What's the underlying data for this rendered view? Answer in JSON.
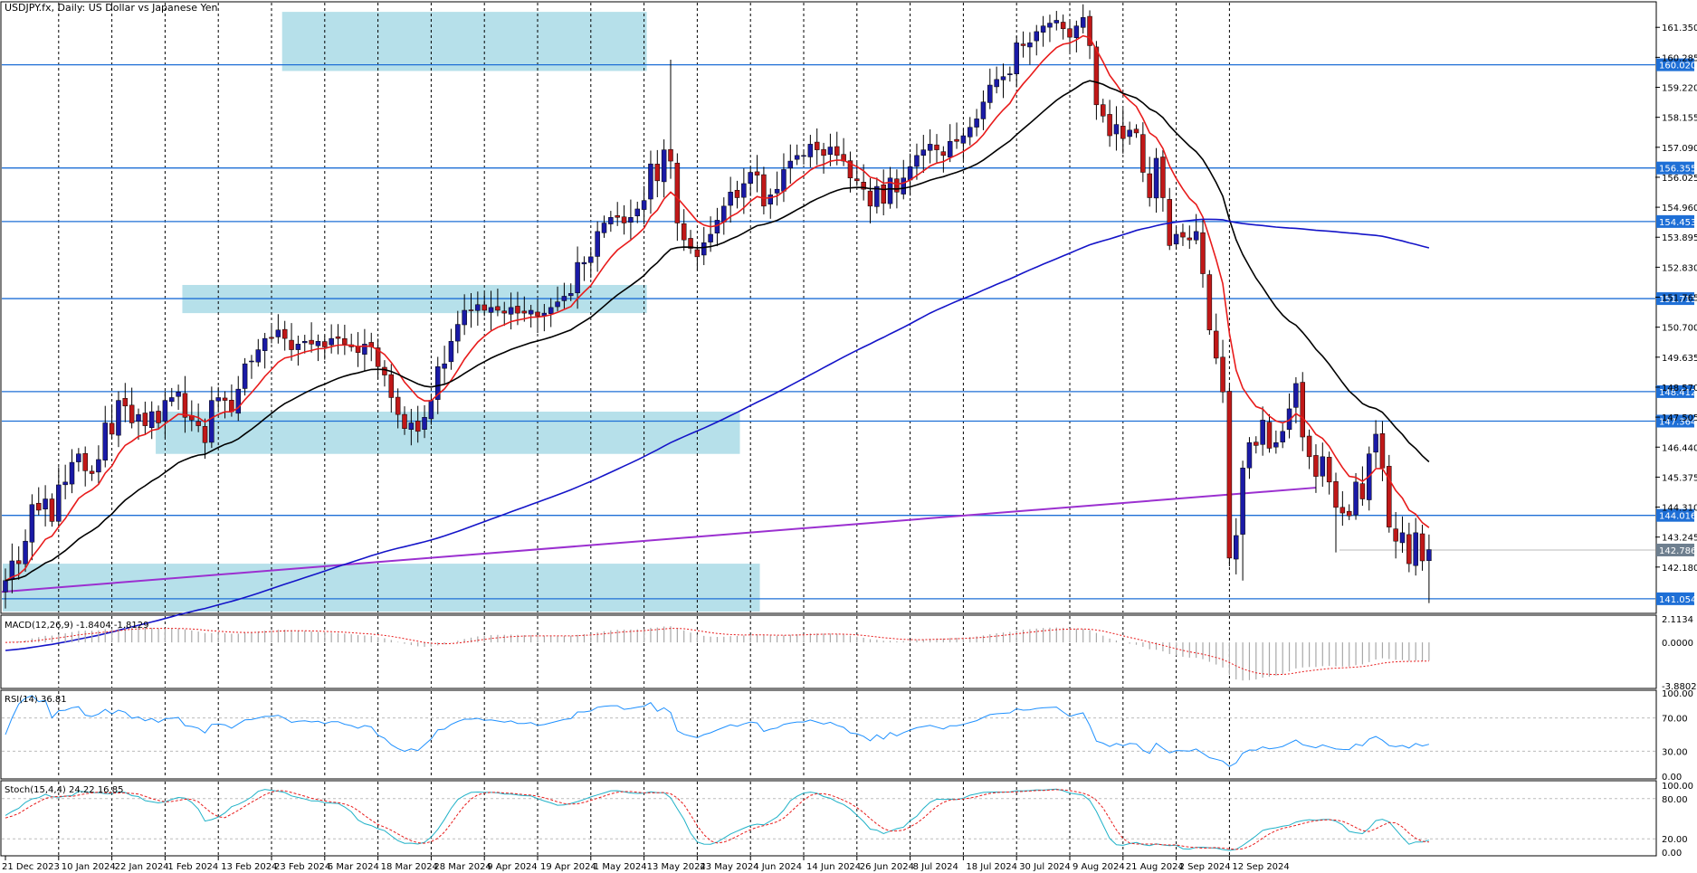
{
  "chart_data": {
    "type": "candlestick",
    "title": "USDJPY.fx, Daily:  US Dollar vs Japanese Yen",
    "colors": {
      "bull": "#1a1aa6",
      "bear": "#c01818",
      "zone": "#a9dbe6",
      "level": "#1e6fd6",
      "ma_fast": "#e81b1b",
      "ma_mid": "#000000",
      "ma_slow": "#1414c8",
      "trendline": "#9b30d0",
      "price_label": "#1e6fd6"
    },
    "price_axis_ticks": [
      "161.350",
      "160.285",
      "159.220",
      "158.155",
      "157.090",
      "156.025",
      "154.960",
      "153.895",
      "152.830",
      "151.765",
      "150.700",
      "149.635",
      "148.570",
      "147.505",
      "146.440",
      "145.375",
      "144.310",
      "143.245",
      "142.180"
    ],
    "price_range": [
      140.6,
      162.0
    ],
    "level_lines": [
      {
        "label": "160.020",
        "value": 160.02
      },
      {
        "label": "156.355",
        "value": 156.355
      },
      {
        "label": "154.453",
        "value": 154.453
      },
      {
        "label": "151.715",
        "value": 151.715
      },
      {
        "label": "148.412",
        "value": 148.412
      },
      {
        "label": "147.364",
        "value": 147.364
      },
      {
        "label": "144.016",
        "value": 144.016
      },
      {
        "label": "141.054",
        "value": 141.054
      }
    ],
    "current_price": {
      "label": "142.786",
      "value": 142.786
    },
    "zones": [
      {
        "from_bar": 42,
        "to_bar": 96,
        "top": 161.9,
        "bottom": 159.8
      },
      {
        "from_bar": 27,
        "to_bar": 96,
        "top": 152.2,
        "bottom": 151.2
      },
      {
        "from_bar": 23,
        "to_bar": 110,
        "top": 147.7,
        "bottom": 146.2
      },
      {
        "from_bar": 0,
        "to_bar": 113,
        "top": 142.3,
        "bottom": 140.6
      }
    ],
    "x_labels": [
      "21 Dec 2023",
      "10 Jan 2024",
      "22 Jan 2024",
      "1 Feb 2024",
      "13 Feb 2024",
      "23 Feb 2024",
      "6 Mar 2024",
      "18 Mar 2024",
      "28 Mar 2024",
      "9 Apr 2024",
      "19 Apr 2024",
      "1 May 2024",
      "13 May 2024",
      "23 May 2024",
      "4 Jun 2024",
      "14 Jun 2024",
      "26 Jun 2024",
      "8 Jul 2024",
      "18 Jul 2024",
      "30 Jul 2024",
      "9 Aug 2024",
      "21 Aug 2024",
      "2 Sep 2024",
      "12 Sep 2024"
    ],
    "x_label_bars": [
      0,
      8,
      16,
      24,
      32,
      40,
      48,
      56,
      64,
      72,
      80,
      88,
      96,
      104,
      112,
      120,
      128,
      136,
      144,
      152,
      160,
      168,
      176,
      184
    ],
    "closes": [
      141.7,
      142.4,
      142.3,
      143.1,
      144.4,
      144.2,
      144.6,
      143.8,
      145.1,
      145.2,
      145.9,
      146.2,
      145.6,
      145.5,
      146.0,
      147.3,
      146.9,
      148.1,
      147.9,
      147.3,
      147.6,
      147.2,
      147.7,
      147.3,
      148.1,
      148.2,
      148.4,
      147.5,
      147.4,
      147.2,
      146.6,
      148.1,
      148.2,
      148.1,
      147.7,
      148.5,
      149.4,
      149.5,
      149.9,
      150.3,
      150.3,
      150.6,
      150.3,
      149.9,
      150.1,
      150.2,
      150.1,
      150.2,
      150.0,
      150.3,
      150.3,
      150.1,
      150.0,
      149.8,
      150.1,
      150.0,
      149.3,
      149.0,
      148.2,
      147.6,
      147.1,
      147.3,
      147.0,
      147.5,
      148.1,
      149.3,
      149.4,
      150.2,
      150.8,
      151.3,
      151.3,
      151.5,
      151.3,
      151.4,
      151.3,
      151.2,
      151.4,
      151.2,
      151.2,
      151.3,
      151.1,
      151.2,
      151.4,
      151.6,
      151.8,
      151.9,
      153.0,
      153.0,
      153.2,
      154.1,
      154.4,
      154.6,
      154.6,
      154.4,
      154.6,
      154.9,
      155.2,
      156.5,
      155.9,
      157.0,
      156.6,
      154.4,
      153.8,
      153.5,
      153.2,
      153.7,
      154.0,
      154.5,
      155.0,
      155.5,
      155.3,
      155.8,
      156.2,
      156.1,
      155.0,
      155.4,
      155.6,
      156.3,
      156.6,
      156.8,
      156.8,
      157.2,
      157.0,
      156.8,
      157.1,
      156.8,
      156.6,
      156.0,
      155.9,
      155.6,
      155.0,
      155.7,
      155.1,
      156.0,
      155.5,
      156.0,
      156.4,
      156.8,
      157.0,
      157.2,
      157.0,
      156.8,
      157.3,
      157.3,
      157.5,
      157.8,
      158.1,
      158.7,
      159.3,
      159.5,
      159.6,
      159.7,
      160.8,
      160.7,
      160.8,
      161.2,
      161.4,
      161.5,
      161.6,
      161.3,
      161.0,
      161.4,
      161.7,
      160.7,
      158.6,
      158.2,
      157.5,
      157.9,
      157.4,
      157.7,
      157.6,
      156.2,
      155.3,
      156.7,
      155.3,
      153.6,
      154.0,
      153.9,
      153.8,
      154.1,
      152.6,
      150.6,
      149.6,
      148.4,
      142.5,
      143.3,
      145.7,
      146.6,
      146.5,
      147.4,
      146.4,
      146.6,
      147.0,
      147.8,
      148.7,
      146.8,
      146.1,
      145.4,
      146.1,
      145.2,
      144.3,
      144.1,
      144.0,
      145.2,
      144.6,
      146.2,
      146.9,
      145.7,
      143.6,
      143.1,
      143.4,
      142.3,
      143.4,
      142.4,
      142.8
    ]
  }
}
